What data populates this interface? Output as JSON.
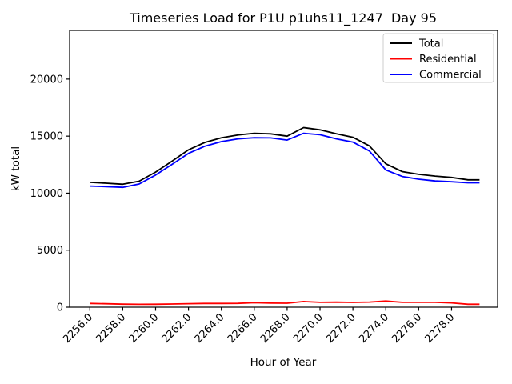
{
  "title": "Timeseries Load for P1U p1uhs11_1247  Day 95",
  "chart_data": {
    "type": "line",
    "title": "Timeseries Load for P1U p1uhs11_1247  Day 95",
    "xlabel": "Hour of Year",
    "ylabel": "kW total",
    "grid": false,
    "background": "#ffffff",
    "axes_color": "#000000",
    "xlim": [
      2254.77,
      2280.8
    ],
    "ylim": [
      0,
      24270
    ],
    "x": [
      2256,
      2257,
      2258,
      2259,
      2260,
      2261,
      2262,
      2263,
      2264,
      2265,
      2266,
      2267,
      2268,
      2269,
      2270,
      2271,
      2272,
      2273,
      2274,
      2275,
      2276,
      2277,
      2278,
      2279
    ],
    "x_end": 2279.7,
    "series": [
      {
        "name": "Total",
        "color": "#000000",
        "values": [
          10950,
          10870,
          10780,
          11050,
          11850,
          12800,
          13800,
          14450,
          14850,
          15100,
          15250,
          15200,
          15000,
          15750,
          15550,
          15200,
          14900,
          14150,
          12580,
          11890,
          11650,
          11500,
          11380,
          11170
        ]
      },
      {
        "name": "Residential",
        "color": "#ff0000",
        "values": [
          330,
          300,
          270,
          250,
          260,
          280,
          310,
          330,
          330,
          340,
          390,
          360,
          350,
          500,
          430,
          440,
          420,
          450,
          540,
          430,
          430,
          430,
          380,
          260
        ]
      },
      {
        "name": "Commercial",
        "color": "#0000ff",
        "values": [
          10620,
          10570,
          10510,
          10800,
          11590,
          12520,
          13490,
          14120,
          14520,
          14760,
          14860,
          14840,
          14650,
          15250,
          15120,
          14760,
          14480,
          13700,
          12040,
          11460,
          11220,
          11070,
          11000,
          10910
        ]
      }
    ],
    "xticks": [
      2256,
      2258,
      2260,
      2262,
      2264,
      2266,
      2268,
      2270,
      2272,
      2274,
      2276,
      2278
    ],
    "xtick_labels": [
      "2256.0",
      "2258.0",
      "2260.0",
      "2262.0",
      "2264.0",
      "2266.0",
      "2268.0",
      "2270.0",
      "2272.0",
      "2274.0",
      "2276.0",
      "2278.0"
    ],
    "yticks": [
      0,
      5000,
      10000,
      15000,
      20000
    ],
    "ytick_labels": [
      "0",
      "5000",
      "10000",
      "15000",
      "20000"
    ],
    "legend": {
      "position": "upper right",
      "entries": [
        "Total",
        "Residential",
        "Commercial"
      ]
    }
  }
}
